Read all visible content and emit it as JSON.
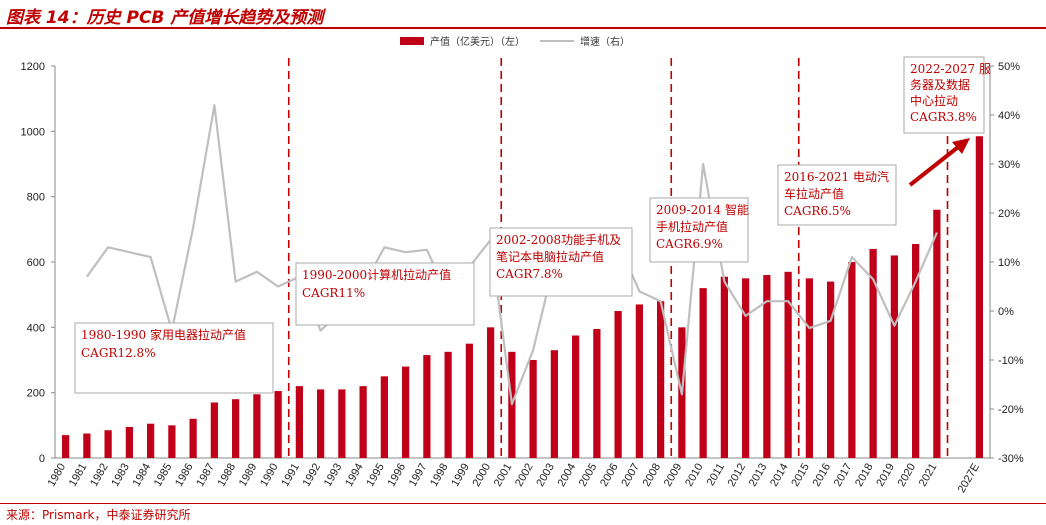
{
  "header": {
    "title": "图表 14：历史 PCB 产值增长趋势及预测"
  },
  "footer": {
    "source": "来源：Prismark，中泰证券研究所"
  },
  "colors": {
    "bar": "#c00018",
    "line": "#bfbfbf",
    "accent": "#c00000",
    "divider": "#c00000"
  },
  "chart_data": {
    "type": "bar",
    "categories": [
      "1980",
      "1981",
      "1982",
      "1983",
      "1984",
      "1985",
      "1986",
      "1987",
      "1988",
      "1989",
      "1990",
      "1991",
      "1992",
      "1993",
      "1994",
      "1995",
      "1996",
      "1997",
      "1998",
      "1999",
      "2000",
      "2001",
      "2002",
      "2003",
      "2004",
      "2005",
      "2006",
      "2007",
      "2008",
      "2009",
      "2010",
      "2011",
      "2012",
      "2013",
      "2014",
      "2015",
      "2016",
      "2017",
      "2018",
      "2019",
      "2020",
      "2021",
      "",
      "2027E"
    ],
    "series": [
      {
        "name": "产值（亿美元）（左）",
        "type": "bar",
        "axis": "left",
        "values": [
          70,
          75,
          85,
          95,
          105,
          100,
          120,
          170,
          180,
          195,
          205,
          220,
          210,
          210,
          220,
          250,
          280,
          315,
          325,
          350,
          400,
          325,
          300,
          330,
          375,
          395,
          450,
          470,
          480,
          400,
          520,
          555,
          550,
          560,
          570,
          550,
          540,
          600,
          640,
          620,
          655,
          760,
          null,
          985
        ]
      },
      {
        "name": "增速（右）",
        "type": "line",
        "axis": "right",
        "values": [
          null,
          7,
          13,
          12,
          11,
          -4,
          17,
          42,
          6,
          8,
          5,
          7,
          -4,
          0,
          5,
          13,
          12,
          12.5,
          3,
          9,
          14.5,
          -19,
          -8,
          10,
          14,
          5,
          14,
          4,
          2,
          -17,
          30,
          6,
          -1,
          2,
          2,
          -3.5,
          -2,
          11,
          6.5,
          -3,
          6,
          16,
          null,
          null
        ]
      }
    ],
    "y_left": {
      "min": 0,
      "max": 1200,
      "ticks": [
        "0",
        "200",
        "400",
        "600",
        "800",
        "1000",
        "1200"
      ]
    },
    "y_right": {
      "min": -30,
      "max": 50,
      "ticks": [
        "-30%",
        "-20%",
        "-10%",
        "0%",
        "10%",
        "20%",
        "30%",
        "40%",
        "50%"
      ]
    },
    "legend": {
      "position": "top"
    },
    "dividers_after": [
      "1990",
      "2000",
      "2008",
      "2014",
      "2021"
    ],
    "annotations": [
      {
        "lines": [
          "1980-1990 家用电器拉动产值",
          "CAGR12.8%"
        ]
      },
      {
        "lines": [
          "1990-2000计算机拉动产值",
          "CAGR11%"
        ]
      },
      {
        "lines": [
          "2002-2008功能手机及",
          "笔记本电脑拉动产值",
          "CAGR7.8%"
        ]
      },
      {
        "lines": [
          "2009-2014 智能",
          "手机拉动产值",
          "CAGR6.9%"
        ]
      },
      {
        "lines": [
          "2016-2021 电动汽",
          "车拉动产值",
          "CAGR6.5%"
        ]
      },
      {
        "lines": [
          "2022-2027 服",
          "务器及数据",
          "中心拉动",
          "CAGR3.8%"
        ]
      }
    ]
  }
}
